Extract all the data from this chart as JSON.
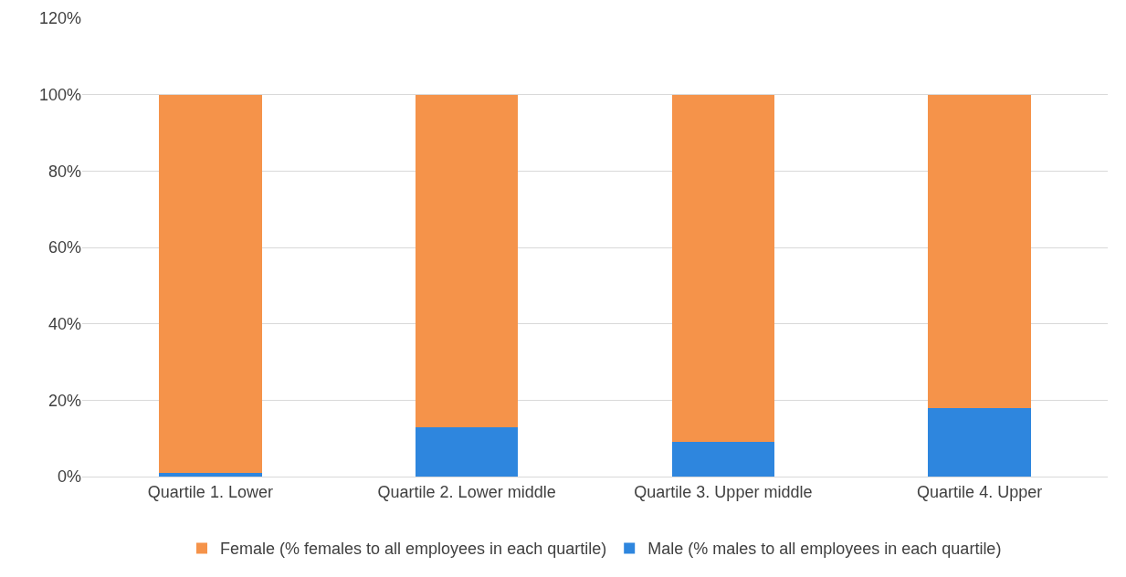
{
  "chart_data": {
    "type": "bar",
    "stacked": true,
    "categories": [
      "Quartile 1. Lower",
      "Quartile 2. Lower middle",
      "Quartile 3. Upper middle",
      "Quartile 4. Upper"
    ],
    "series": [
      {
        "name": "Male (% males to all employees in each quartile)",
        "color": "#2e86de",
        "values": [
          1,
          13,
          9,
          18
        ]
      },
      {
        "name": "Female (% females to all employees in each quartile)",
        "color": "#f5934a",
        "values": [
          99,
          87,
          91,
          82
        ]
      }
    ],
    "ylim": [
      0,
      120
    ],
    "yticks": [
      {
        "value": 0,
        "label": "0%"
      },
      {
        "value": 20,
        "label": "20%"
      },
      {
        "value": 40,
        "label": "40%"
      },
      {
        "value": 60,
        "label": "60%"
      },
      {
        "value": 80,
        "label": "80%"
      },
      {
        "value": 100,
        "label": "100%"
      },
      {
        "value": 120,
        "label": "120%"
      }
    ],
    "grid": "y",
    "legend": "bottom"
  }
}
